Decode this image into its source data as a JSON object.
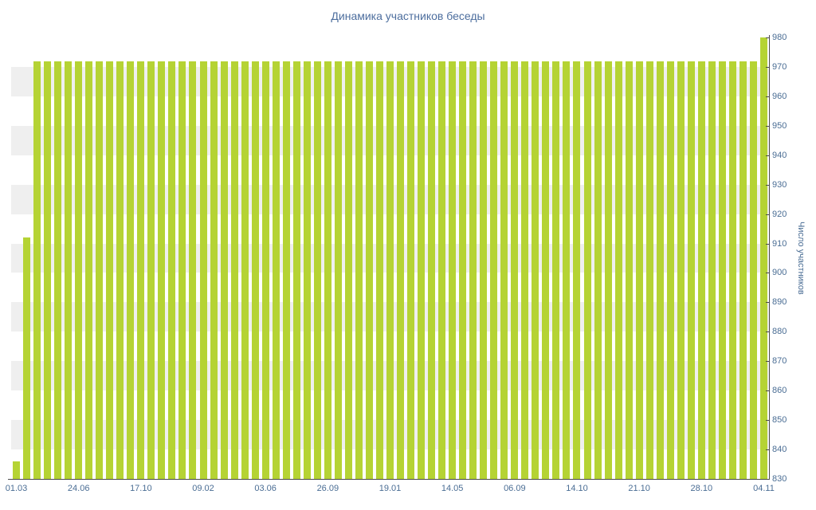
{
  "chart_data": {
    "type": "bar",
    "title": "Динамика участников беседы",
    "xlabel": "",
    "ylabel": "Число участников",
    "ylim": [
      830,
      980
    ],
    "y_ticks": [
      830,
      840,
      850,
      860,
      870,
      880,
      890,
      900,
      910,
      920,
      930,
      940,
      950,
      960,
      970,
      980
    ],
    "x_tick_labels": [
      "01.03",
      "24.06",
      "17.10",
      "09.02",
      "03.06",
      "26.09",
      "19.01",
      "14.05",
      "06.09",
      "14.10",
      "21.10",
      "28.10",
      "04.11"
    ],
    "x_label_every": 6,
    "n_points": 73,
    "values": [
      836,
      912,
      972,
      972,
      972,
      972,
      972,
      972,
      972,
      972,
      972,
      972,
      972,
      972,
      972,
      972,
      972,
      972,
      972,
      972,
      972,
      972,
      972,
      972,
      972,
      972,
      972,
      972,
      972,
      972,
      972,
      972,
      972,
      972,
      972,
      972,
      972,
      972,
      972,
      972,
      972,
      972,
      972,
      972,
      972,
      972,
      972,
      972,
      972,
      972,
      972,
      972,
      972,
      972,
      972,
      972,
      972,
      972,
      972,
      972,
      972,
      972,
      972,
      972,
      972,
      972,
      972,
      972,
      972,
      972,
      972,
      972,
      980
    ],
    "legend": "none",
    "grid": "horizontal-bands",
    "colors": {
      "bar": "#b5d334",
      "band_gray": "#efefef",
      "band_white": "#ffffff",
      "axis": "#4a4a4a",
      "tick_text": "#4a6d94",
      "title_text": "#4d6e9e"
    }
  }
}
